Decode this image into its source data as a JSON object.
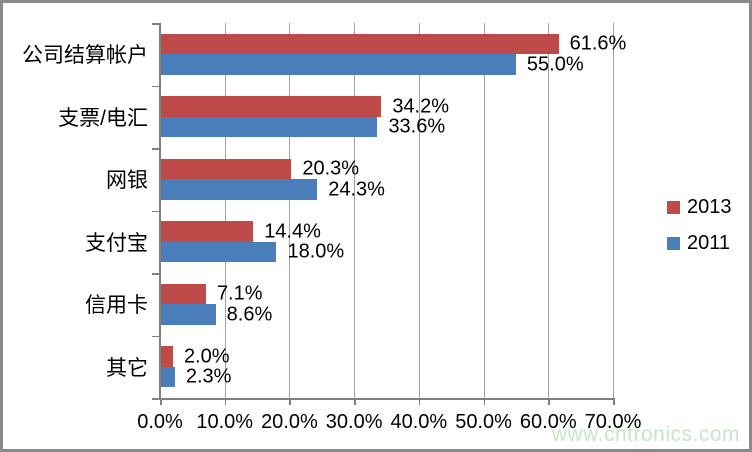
{
  "chart_data": {
    "type": "bar",
    "orientation": "horizontal",
    "title": "",
    "categories": [
      "公司结算帐户",
      "支票/电汇",
      "网银",
      "支付宝",
      "信用卡",
      "其它"
    ],
    "series": [
      {
        "name": "2013",
        "color": "#be4b48",
        "values": [
          61.6,
          34.2,
          20.3,
          14.4,
          7.1,
          2.0
        ]
      },
      {
        "name": "2011",
        "color": "#4a7ebb",
        "values": [
          55.0,
          33.6,
          24.3,
          18.0,
          8.6,
          2.3
        ]
      }
    ],
    "value_labels": [
      [
        "61.6%",
        "34.2%",
        "20.3%",
        "14.4%",
        "7.1%",
        "2.0%"
      ],
      [
        "55.0%",
        "33.6%",
        "24.3%",
        "18.0%",
        "8.6%",
        "2.3%"
      ]
    ],
    "xlim": [
      0,
      70
    ],
    "x_ticks": [
      0,
      10,
      20,
      30,
      40,
      50,
      60,
      70
    ],
    "x_tick_labels": [
      "0.0%",
      "10.0%",
      "20.0%",
      "30.0%",
      "40.0%",
      "50.0%",
      "60.0%",
      "70.0%"
    ],
    "grid": true,
    "legend_position": "right"
  },
  "watermark": {
    "text": "www.cntronics.com",
    "color": "#c6e5c9"
  },
  "colors": {
    "axis": "#808080",
    "gridline": "#a3a3a3",
    "frame_border": "#8a8a8a",
    "text": "#000000",
    "background": "#ffffff"
  }
}
